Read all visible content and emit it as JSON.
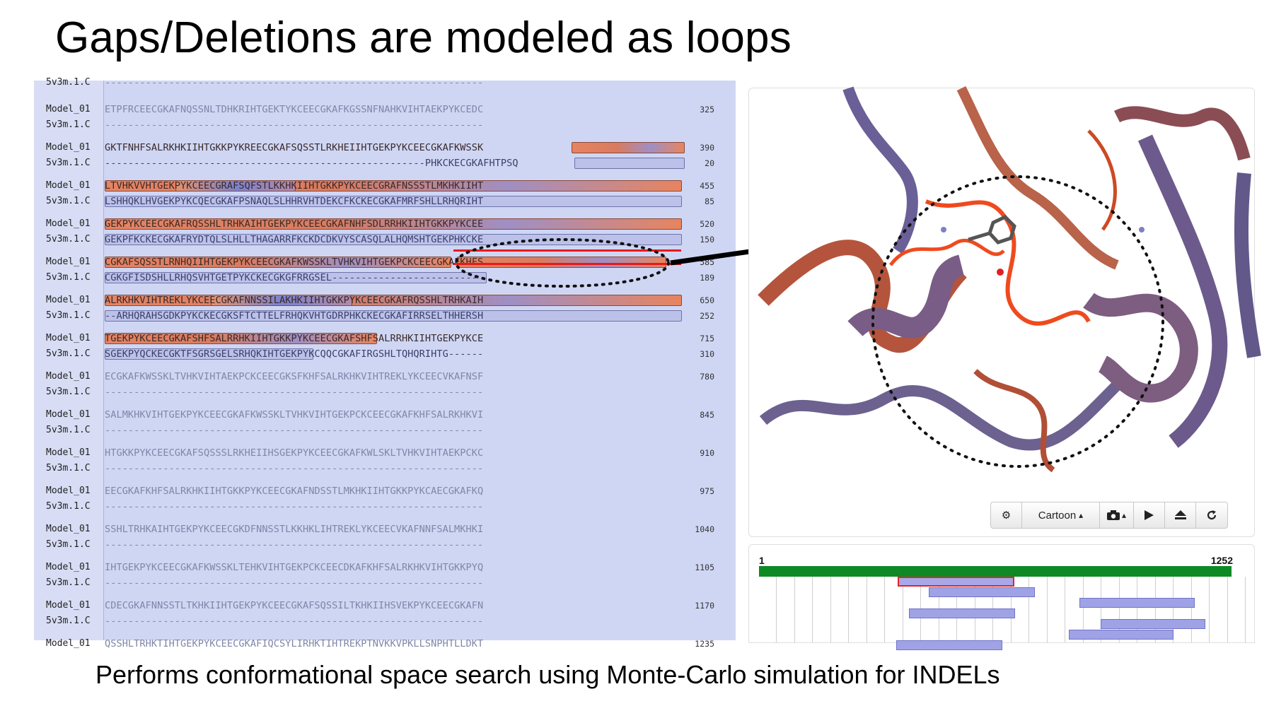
{
  "slide": {
    "title": "Gaps/Deletions are modeled as loops",
    "caption": "Performs conformational space search using Monte-Carlo simulation for INDELs"
  },
  "alignment": {
    "partial_top_label": "5v3m.1.C",
    "blocks": [
      {
        "model": "ETPFRCEECGKAFNQSSNLTDHKRIHTGEKTYKCEECGKAFKGSSNFNAHKVIHTAEKPYKCEDC",
        "model_end": "325",
        "template": "-----------------------------------------------------------------",
        "template_end": ""
      },
      {
        "model": "GKTFNHFSALRKHKIIHTGKKPYKREECGKAFSQSSTLRKHEIIHTGEKPYKCEECGKAFKWSSK",
        "model_end": "390",
        "template": "-------------------------------------------------------PHKCKECGKAFHTPSQ",
        "template_end": "20"
      },
      {
        "model": "LTVHKVVHTGEKPYKCEECGRAFSQFSTLKKHKIIHTGKKPYKCEECGRAFNSSSTLMKHKIIHT",
        "model_end": "455",
        "template": "LSHHQKLHVGEKPYKCQECGKAFPSNAQLSLHHRVHTDEKCFKCKECGKAFMRFSHLLRHQRIHT",
        "template_end": "85"
      },
      {
        "model": "GEKPYKCEECGKAFRQSSHLTRHKAIHTGEKPYKCEECGKAFNHFSDLRRHKIIHTGKKPYKCEE",
        "model_end": "520",
        "template": "GEKPFKCKECGKAFRYDTQLSLHLLTHAGARRFKCKDCDKVYSCASQLALHQMSHTGEKPHKCKE",
        "template_end": "150"
      },
      {
        "model": "CGKAFSQSSTLRNHQIIHTGEKPYKCEECGKAFKWSSKLTVHKVIHTGEKPCKCEECGKAFKHFS",
        "model_end": "585",
        "template": "CGKGFISDSHLLRHQSVHTGETPYKCKECGKGFRRGSEL-------------------------",
        "template_end": "189"
      },
      {
        "model": "ALRKHKVIHTREKLYKCEECGKAFNNSSILAKHKIIHTGKKPYKCEECGKAFRQSSHLTRHKAIH",
        "model_end": "650",
        "template": "--ARHQRAHSGDKPYKCKECGKSFTCTTELFRHQKVHTGDRPHKCKECGKAFIRRSELTHHERSH",
        "template_end": "252"
      },
      {
        "model": "TGEKPYKCEECGKAFSHFSALRRHKIIHTGKKPYKCEECGKAFSHFSALRRHKIIHTGEKPYKCE",
        "model_end": "715",
        "template": "SGEKPYQCKECGKTFSGRSGELSRHQKIHTGEKPYKCQQCGKAFIRGSHLTQHQRIHTG------",
        "template_end": "310"
      },
      {
        "model": "ECGKAFKWSSKLTVHKVIHTAEKPCKCEECGKSFKHFSALRKHKVIHTREKLYKCEECVKAFNSF",
        "model_end": "780",
        "template": "-----------------------------------------------------------------",
        "template_end": ""
      },
      {
        "model": "SALMKHKVIHTGEKPYKCEECGKAFKWSSKLTVHKVIHTGEKPCKCEECGKAFKHFSALRKHKVI",
        "model_end": "845",
        "template": "-----------------------------------------------------------------",
        "template_end": ""
      },
      {
        "model": "HTGKKPYKCEECGKAFSQSSSLRKHEIIHSGEKPYKCEECGKAFKWLSKLTVHKVIHTAEKPCKC",
        "model_end": "910",
        "template": "-----------------------------------------------------------------",
        "template_end": ""
      },
      {
        "model": "EECGKAFKHFSALRKHKIIHTGKKPYKCEECGKAFNDSSTLMKHKIIHTGKKPYKCAECGKAFKQ",
        "model_end": "975",
        "template": "-----------------------------------------------------------------",
        "template_end": ""
      },
      {
        "model": "SSHLTRHKAIHTGEKPYKCEECGKDFNNSSTLKKHKLIHTREKLYKCEECVKAFNNFSALMKHKI",
        "model_end": "1040",
        "template": "-----------------------------------------------------------------",
        "template_end": ""
      },
      {
        "model": "IHTGEKPYKCEECGKAFKWSSKLTEHKVIHTGEKPCKCEECDKAFKHFSALRKHKVIHTGKKPYQ",
        "model_end": "1105",
        "template": "-----------------------------------------------------------------",
        "template_end": ""
      },
      {
        "model": "CDECGKAFNNSSTLTKHKIIHTGEKPYKCEECGKAFSQSSILTKHKIIHSVEKPYKCEECGKAFN",
        "model_end": "1170",
        "template": "-----------------------------------------------------------------",
        "template_end": ""
      },
      {
        "model": "QSSHLTRHKTIHTGEKPYKCEECGKAFIQCSYLIRHKTIHTREKPTNVKKVPKLLSNPHTLLDKT",
        "model_end": "1235",
        "template": "",
        "template_end": ""
      }
    ],
    "model_label": "Model_01",
    "template_label": "5v3m.1.C"
  },
  "viewer": {
    "toolbar": {
      "settings_icon": "gear-icon",
      "style_label": "Cartoon",
      "style_caret": "▴",
      "camera_icon": "camera-icon",
      "camera_caret": "▴",
      "play_icon": "play-icon",
      "eject_icon": "eject-icon",
      "reset_icon": "refresh-icon"
    },
    "colors": {
      "ribbon_blue": "#6a5f96",
      "ribbon_red": "#b5543c",
      "loop_orange": "#ef4a1f",
      "helix_purple": "#7c5e84"
    }
  },
  "coverage": {
    "start_label": "1",
    "end_label": "1252",
    "full_bar_color": "#0e8a24",
    "template_bar_color": "#9fa3e6",
    "selected_outline_color": "#e0232f"
  }
}
